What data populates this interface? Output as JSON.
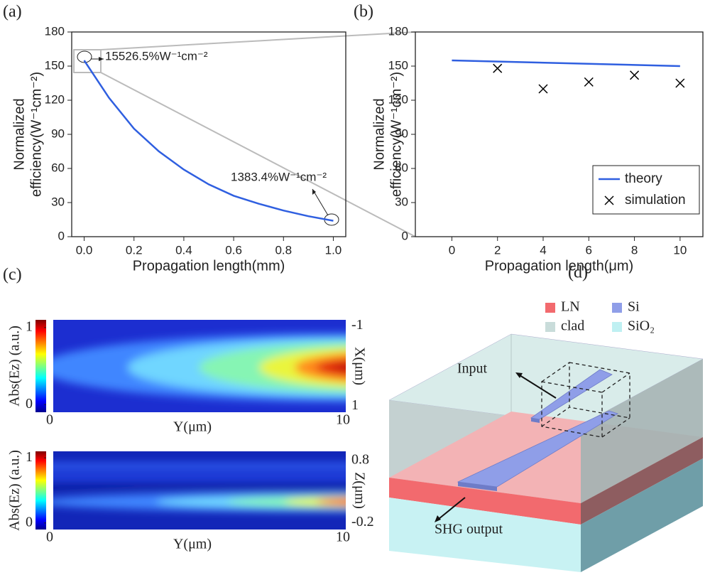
{
  "chart_data": [
    {
      "type": "line",
      "panel_label": "(a)",
      "xlabel": "Propagation length(mm)",
      "ylabel": [
        "Normalized",
        "efficiency(W⁻¹cm⁻²)"
      ],
      "x": [
        0,
        0.1,
        0.2,
        0.3,
        0.4,
        0.5,
        0.6,
        0.7,
        0.8,
        0.9,
        1.0
      ],
      "values": [
        155,
        122,
        95,
        75,
        59,
        46,
        36,
        29,
        23,
        18,
        14
      ],
      "color": "#2f5fe0",
      "xlim": [
        -0.05,
        1.05
      ],
      "xticks": [
        {
          "value": 0,
          "label": "0.0"
        },
        0.2,
        0.4,
        0.6,
        0.8,
        {
          "value": 1,
          "label": "1.0"
        }
      ],
      "ylim": [
        0,
        180
      ],
      "yticks": [
        0,
        30,
        60,
        90,
        120,
        150,
        180
      ],
      "annotations": [
        "15526.5%W⁻¹cm⁻²",
        "1383.4%W⁻¹cm⁻²"
      ]
    },
    {
      "type": "line",
      "panel_label": "(b)",
      "xlabel": "Propagation length(μm)",
      "ylabel": [
        "Normalized",
        "efficiency(W⁻¹cm⁻²)"
      ],
      "series": [
        {
          "name": "theory",
          "type": "line",
          "color": "#2f5fe0",
          "x": [
            0,
            10
          ],
          "values": [
            155,
            150
          ]
        },
        {
          "name": "simulation",
          "type": "scatter",
          "color": "#000000",
          "x": [
            2,
            4,
            6,
            8,
            10
          ],
          "values": [
            148,
            130,
            136,
            142,
            135
          ]
        }
      ],
      "xlim": [
        -1.6,
        11
      ],
      "xticks": [
        0,
        2,
        4,
        6,
        8,
        10
      ],
      "ylim": [
        0,
        180
      ],
      "yticks": [
        0,
        30,
        60,
        90,
        120,
        150,
        180
      ],
      "legend": "lower right"
    },
    {
      "type": "heatmap",
      "panel_label": "(c)",
      "xlabel": "Y(μm)",
      "ylabel": "X(μm)",
      "colorbar_label": "Abs(Ez) (a.u.)",
      "xlim": [
        0,
        10
      ],
      "xticks": [
        0,
        10
      ],
      "ylim": [
        1.15,
        -1.15
      ],
      "yticks": [
        -1,
        1
      ],
      "clim": [
        -0.1,
        1.1
      ],
      "cticks": [
        0,
        1
      ]
    },
    {
      "type": "heatmap",
      "xlabel": "Y(μm)",
      "ylabel": "Z(μm)",
      "colorbar_label": "Abs(Ez) (a.u.)",
      "xlim": [
        0,
        10
      ],
      "xticks": [
        0,
        10
      ],
      "ylim": [
        -0.31,
        0.95
      ],
      "yticks": [
        0.8,
        -0.2
      ],
      "clim": [
        -0.1,
        1.1
      ],
      "cticks": [
        0,
        1
      ]
    }
  ],
  "diagram": {
    "panel_label": "(d)",
    "legend": [
      {
        "name": "LN",
        "color": "#f26a6e"
      },
      {
        "name": "Si",
        "color": "#8f9ee8"
      },
      {
        "name": "clad",
        "color": "#c9dcda"
      },
      {
        "name": "SiO₂",
        "color": "#bff0f2"
      }
    ],
    "labels": [
      "Input",
      "SHG output"
    ]
  }
}
